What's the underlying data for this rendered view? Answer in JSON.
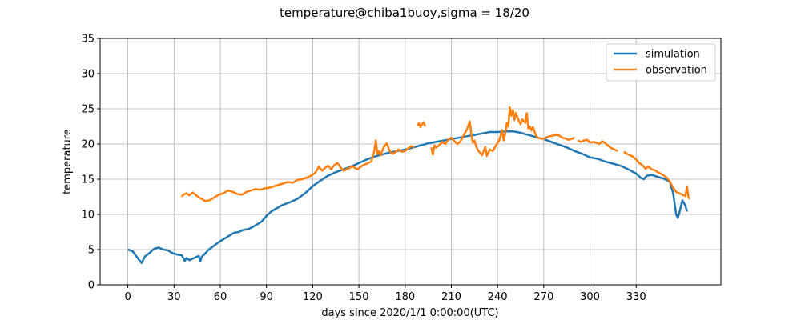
{
  "chart_data": {
    "type": "line",
    "title": "temperature@chiba1buoy,sigma = 18/20",
    "xlabel": "days since 2020/1/1 0:00:00(UTC)",
    "ylabel": "temperature",
    "xlim": [
      -18,
      385
    ],
    "ylim": [
      0,
      35
    ],
    "xticks": [
      0,
      30,
      60,
      90,
      120,
      150,
      180,
      210,
      240,
      270,
      300,
      330
    ],
    "yticks": [
      0,
      5,
      10,
      15,
      20,
      25,
      30,
      35
    ],
    "grid": true,
    "legend_position": "upper-right",
    "series": [
      {
        "name": "simulation",
        "color": "#1f77b4",
        "x": [
          0,
          3,
          5,
          7,
          9,
          11,
          14,
          17,
          20,
          23,
          26,
          29,
          32,
          35,
          37,
          38,
          40,
          42,
          44,
          46,
          47,
          48,
          50,
          52,
          55,
          58,
          60,
          63,
          66,
          69,
          72,
          75,
          78,
          81,
          84,
          87,
          90,
          93,
          96,
          100,
          105,
          110,
          115,
          120,
          125,
          130,
          135,
          140,
          145,
          150,
          155,
          160,
          165,
          170,
          175,
          180,
          185,
          190,
          195,
          200,
          205,
          210,
          215,
          220,
          225,
          230,
          235,
          240,
          245,
          250,
          255,
          258,
          260,
          263,
          266,
          270,
          275,
          280,
          285,
          290,
          295,
          300,
          305,
          310,
          315,
          320,
          325,
          330,
          333,
          335,
          337,
          340,
          343,
          346,
          349,
          352,
          354,
          355,
          356,
          357,
          358,
          360,
          362,
          363
        ],
        "y": [
          5.0,
          4.8,
          4.2,
          3.6,
          3.1,
          4.0,
          4.5,
          5.1,
          5.3,
          5.0,
          4.9,
          4.5,
          4.3,
          4.2,
          3.4,
          3.8,
          3.5,
          3.7,
          3.9,
          4.1,
          3.3,
          4.0,
          4.4,
          4.9,
          5.4,
          5.9,
          6.2,
          6.6,
          7.0,
          7.4,
          7.5,
          7.8,
          7.9,
          8.2,
          8.6,
          9.0,
          9.8,
          10.4,
          10.8,
          11.3,
          11.7,
          12.2,
          13.0,
          14.0,
          14.8,
          15.5,
          16.0,
          16.4,
          16.8,
          17.3,
          17.8,
          18.2,
          18.5,
          18.8,
          19.0,
          19.2,
          19.5,
          19.8,
          20.1,
          20.3,
          20.5,
          20.7,
          20.9,
          21.1,
          21.3,
          21.5,
          21.7,
          21.7,
          21.8,
          21.8,
          21.6,
          21.4,
          21.3,
          21.1,
          20.9,
          20.7,
          20.3,
          19.9,
          19.5,
          19.0,
          18.6,
          18.1,
          17.9,
          17.5,
          17.2,
          16.9,
          16.4,
          15.8,
          15.2,
          15.0,
          15.5,
          15.6,
          15.4,
          15.2,
          15.0,
          14.6,
          13.0,
          11.5,
          10.0,
          9.5,
          10.2,
          12.0,
          11.2,
          10.4
        ]
      },
      {
        "name": "observation",
        "color": "#ff7f0e",
        "x": [
          35,
          36,
          38,
          40,
          42,
          44,
          46,
          48,
          50,
          53,
          56,
          59,
          62,
          65,
          68,
          71,
          74,
          77,
          80,
          83,
          86,
          89,
          92,
          95,
          98,
          101,
          104,
          107,
          110,
          113,
          116,
          119,
          122,
          124,
          126,
          128,
          130,
          132,
          134,
          136,
          138,
          140,
          143,
          146,
          149,
          152,
          155,
          158,
          160,
          161,
          162,
          163,
          164,
          166,
          168,
          170,
          172,
          174,
          176,
          178,
          180,
          182,
          184,
          186,
          null,
          188,
          189,
          190,
          191,
          192,
          193,
          null,
          197,
          198,
          199,
          200,
          202,
          204,
          206,
          208,
          210,
          212,
          214,
          216,
          218,
          220,
          222,
          223,
          224,
          225,
          226,
          227,
          228,
          230,
          232,
          233,
          235,
          237,
          239,
          241,
          242,
          243,
          244,
          245,
          246,
          247,
          248,
          249,
          250,
          251,
          252,
          253,
          254,
          255,
          256,
          257,
          258,
          259,
          260,
          261,
          262,
          263,
          264,
          265,
          266,
          268,
          270,
          272,
          274,
          276,
          278,
          280,
          282,
          284,
          286,
          288,
          290,
          null,
          292,
          294,
          296,
          298,
          300,
          302,
          304,
          306,
          308,
          310,
          312,
          314,
          316,
          318,
          null,
          322,
          324,
          326,
          328,
          330,
          332,
          334,
          336,
          338,
          340,
          342,
          344,
          346,
          348,
          350,
          352,
          354,
          356,
          358,
          360,
          362,
          363,
          364,
          365
        ],
        "y": [
          12.5,
          12.8,
          13.0,
          12.7,
          13.1,
          12.8,
          12.4,
          12.2,
          11.9,
          12.0,
          12.4,
          12.8,
          13.0,
          13.4,
          13.2,
          12.9,
          12.8,
          13.2,
          13.4,
          13.6,
          13.5,
          13.7,
          13.8,
          14.0,
          14.2,
          14.4,
          14.6,
          14.5,
          14.9,
          15.0,
          15.2,
          15.5,
          16.0,
          16.8,
          16.2,
          16.6,
          16.9,
          16.4,
          17.0,
          17.3,
          16.7,
          16.2,
          16.5,
          16.8,
          16.4,
          16.9,
          17.2,
          17.5,
          19.0,
          20.5,
          18.6,
          19.0,
          18.4,
          19.5,
          20.1,
          19.0,
          18.6,
          18.9,
          19.2,
          18.9,
          19.0,
          19.4,
          19.7,
          19.5,
          null,
          22.6,
          23.0,
          22.4,
          22.8,
          23.1,
          22.5,
          null,
          19.5,
          18.5,
          19.8,
          19.5,
          19.8,
          20.3,
          20.0,
          20.6,
          20.9,
          20.4,
          20.0,
          20.4,
          21.2,
          22.0,
          23.2,
          21.2,
          20.2,
          20.5,
          19.8,
          19.2,
          18.9,
          18.4,
          19.6,
          18.3,
          19.2,
          19.0,
          19.8,
          20.5,
          21.2,
          22.0,
          20.5,
          21.5,
          23.0,
          22.5,
          25.2,
          24.0,
          24.8,
          23.4,
          24.4,
          23.7,
          23.2,
          22.8,
          23.5,
          23.3,
          23.0,
          24.4,
          22.2,
          22.5,
          21.9,
          22.4,
          21.8,
          21.2,
          20.9,
          20.8,
          20.7,
          21.0,
          21.1,
          21.2,
          21.3,
          21.2,
          20.9,
          20.8,
          20.6,
          20.7,
          20.9,
          null,
          20.5,
          20.3,
          20.5,
          20.6,
          20.2,
          20.3,
          20.2,
          20.0,
          20.4,
          20.1,
          19.7,
          19.4,
          19.2,
          19.0,
          null,
          18.9,
          18.6,
          18.4,
          18.2,
          17.8,
          17.3,
          17.0,
          16.5,
          16.8,
          16.4,
          16.3,
          16.0,
          15.8,
          15.5,
          15.2,
          14.6,
          13.8,
          13.2,
          13.0,
          12.8,
          12.6,
          14.0,
          12.4,
          12.2
        ]
      }
    ]
  }
}
